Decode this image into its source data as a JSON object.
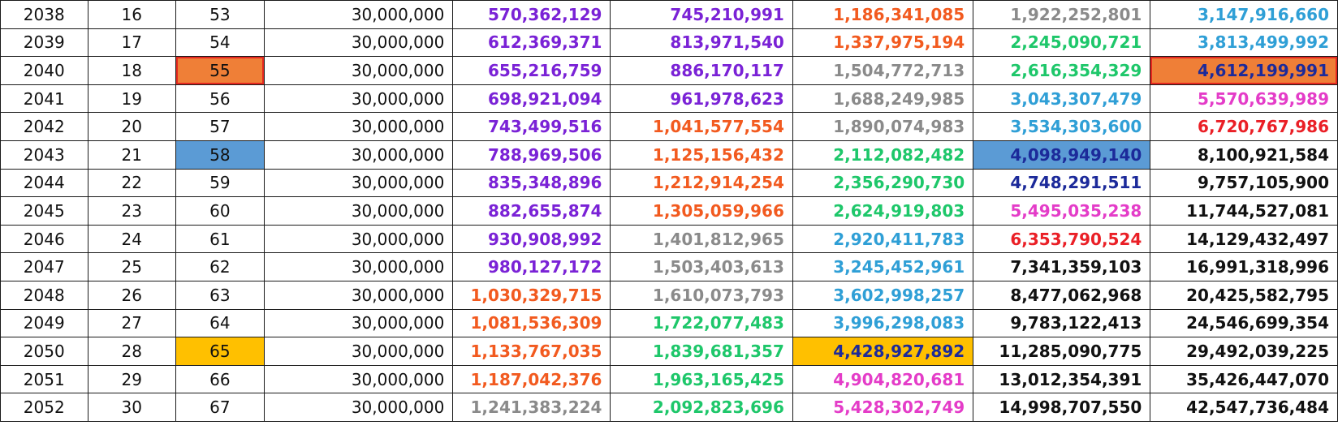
{
  "sheet": {
    "rows": [
      {
        "year": "2038",
        "n": "16",
        "age": "53",
        "base": "30,000,000",
        "values": [
          "570,362,129",
          "745,210,991",
          "1,186,341,085",
          "1,922,252,801",
          "3,147,916,660"
        ],
        "colors": [
          "#7a22d6",
          "#7a22d6",
          "#f25a1f",
          "#8a8a8a",
          "#2f9fd6"
        ]
      },
      {
        "year": "2039",
        "n": "17",
        "age": "54",
        "base": "30,000,000",
        "values": [
          "612,369,371",
          "813,971,540",
          "1,337,975,194",
          "2,245,090,721",
          "3,813,499,992"
        ],
        "colors": [
          "#7a22d6",
          "#7a22d6",
          "#f25a1f",
          "#1ec76a",
          "#2f9fd6"
        ]
      },
      {
        "year": "2040",
        "n": "18",
        "age": "55",
        "base": "30,000,000",
        "values": [
          "655,216,759",
          "886,170,117",
          "1,504,772,713",
          "2,616,354,329",
          "4,612,199,991"
        ],
        "colors": [
          "#7a22d6",
          "#7a22d6",
          "#8a8a8a",
          "#1ec76a",
          "#1c2a9a"
        ]
      },
      {
        "year": "2041",
        "n": "19",
        "age": "56",
        "base": "30,000,000",
        "values": [
          "698,921,094",
          "961,978,623",
          "1,688,249,985",
          "3,043,307,479",
          "5,570,639,989"
        ],
        "colors": [
          "#7a22d6",
          "#7a22d6",
          "#8a8a8a",
          "#2f9fd6",
          "#e43cc8"
        ]
      },
      {
        "year": "2042",
        "n": "20",
        "age": "57",
        "base": "30,000,000",
        "values": [
          "743,499,516",
          "1,041,577,554",
          "1,890,074,983",
          "3,534,303,600",
          "6,720,767,986"
        ],
        "colors": [
          "#7a22d6",
          "#f25a1f",
          "#8a8a8a",
          "#2f9fd6",
          "#ea1f26"
        ]
      },
      {
        "year": "2043",
        "n": "21",
        "age": "58",
        "base": "30,000,000",
        "values": [
          "788,969,506",
          "1,125,156,432",
          "2,112,082,482",
          "4,098,949,140",
          "8,100,921,584"
        ],
        "colors": [
          "#7a22d6",
          "#f25a1f",
          "#1ec76a",
          "#1c2a9a",
          "#111111"
        ]
      },
      {
        "year": "2044",
        "n": "22",
        "age": "59",
        "base": "30,000,000",
        "values": [
          "835,348,896",
          "1,212,914,254",
          "2,356,290,730",
          "4,748,291,511",
          "9,757,105,900"
        ],
        "colors": [
          "#7a22d6",
          "#f25a1f",
          "#1ec76a",
          "#1c2a9a",
          "#111111"
        ]
      },
      {
        "year": "2045",
        "n": "23",
        "age": "60",
        "base": "30,000,000",
        "values": [
          "882,655,874",
          "1,305,059,966",
          "2,624,919,803",
          "5,495,035,238",
          "11,744,527,081"
        ],
        "colors": [
          "#7a22d6",
          "#f25a1f",
          "#1ec76a",
          "#e43cc8",
          "#111111"
        ]
      },
      {
        "year": "2046",
        "n": "24",
        "age": "61",
        "base": "30,000,000",
        "values": [
          "930,908,992",
          "1,401,812,965",
          "2,920,411,783",
          "6,353,790,524",
          "14,129,432,497"
        ],
        "colors": [
          "#7a22d6",
          "#8a8a8a",
          "#2f9fd6",
          "#ea1f26",
          "#111111"
        ]
      },
      {
        "year": "2047",
        "n": "25",
        "age": "62",
        "base": "30,000,000",
        "values": [
          "980,127,172",
          "1,503,403,613",
          "3,245,452,961",
          "7,341,359,103",
          "16,991,318,996"
        ],
        "colors": [
          "#7a22d6",
          "#8a8a8a",
          "#2f9fd6",
          "#111111",
          "#111111"
        ]
      },
      {
        "year": "2048",
        "n": "26",
        "age": "63",
        "base": "30,000,000",
        "values": [
          "1,030,329,715",
          "1,610,073,793",
          "3,602,998,257",
          "8,477,062,968",
          "20,425,582,795"
        ],
        "colors": [
          "#f25a1f",
          "#8a8a8a",
          "#2f9fd6",
          "#111111",
          "#111111"
        ]
      },
      {
        "year": "2049",
        "n": "27",
        "age": "64",
        "base": "30,000,000",
        "values": [
          "1,081,536,309",
          "1,722,077,483",
          "3,996,298,083",
          "9,783,122,413",
          "24,546,699,354"
        ],
        "colors": [
          "#f25a1f",
          "#1ec76a",
          "#2f9fd6",
          "#111111",
          "#111111"
        ]
      },
      {
        "year": "2050",
        "n": "28",
        "age": "65",
        "base": "30,000,000",
        "values": [
          "1,133,767,035",
          "1,839,681,357",
          "4,428,927,892",
          "11,285,090,775",
          "29,492,039,225"
        ],
        "colors": [
          "#f25a1f",
          "#1ec76a",
          "#1c2a9a",
          "#111111",
          "#111111"
        ]
      },
      {
        "year": "2051",
        "n": "29",
        "age": "66",
        "base": "30,000,000",
        "values": [
          "1,187,042,376",
          "1,963,165,425",
          "4,904,820,681",
          "13,012,354,391",
          "35,426,447,070"
        ],
        "colors": [
          "#f25a1f",
          "#1ec76a",
          "#e43cc8",
          "#111111",
          "#111111"
        ]
      },
      {
        "year": "2052",
        "n": "30",
        "age": "67",
        "base": "30,000,000",
        "values": [
          "1,241,383,224",
          "2,092,823,696",
          "5,428,302,749",
          "14,998,707,550",
          "42,547,736,484"
        ],
        "colors": [
          "#8a8a8a",
          "#1ec76a",
          "#e43cc8",
          "#111111",
          "#111111"
        ]
      }
    ],
    "highlights": {
      "orange": "#ef7f37",
      "blue": "#5b9bd5",
      "yellow": "#ffc000",
      "outline": "#e5281f"
    },
    "highlighted_cells": [
      {
        "row": 2,
        "col": "age",
        "fill": "orange",
        "outline": true
      },
      {
        "row": 2,
        "col": 4,
        "fill": "orange",
        "outline": true
      },
      {
        "row": 5,
        "col": "age",
        "fill": "blue"
      },
      {
        "row": 5,
        "col": 3,
        "fill": "blue"
      },
      {
        "row": 12,
        "col": "age",
        "fill": "yellow"
      },
      {
        "row": 12,
        "col": 2,
        "fill": "yellow"
      }
    ]
  }
}
